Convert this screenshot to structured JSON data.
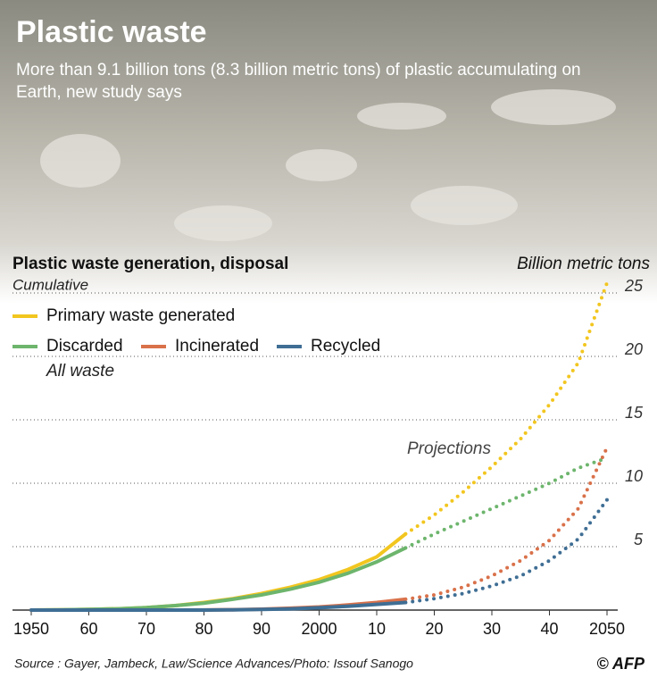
{
  "chart_data": {
    "type": "line",
    "title": "Plastic waste",
    "subtitle": "More than 9.1 billion tons (8.3 billion metric tons) of plastic accumulating on Earth, new study says",
    "chart_title": "Plastic waste generation, disposal",
    "chart_subtitle": "Cumulative",
    "y_label": "Billion metric tons",
    "annotations": [
      "All waste",
      "Projections"
    ],
    "source": "Source : Gayer, Jambeck, Law/Science Advances/Photo: Issouf Sanogo",
    "credit": "© AFP",
    "x": [
      1950,
      1955,
      1960,
      1965,
      1970,
      1975,
      1980,
      1985,
      1990,
      1995,
      2000,
      2005,
      2010,
      2015,
      2020,
      2025,
      2030,
      2035,
      2040,
      2045,
      2050
    ],
    "projection_from": 2015,
    "series": [
      {
        "name": "Primary waste generated",
        "color": "#f2c61f",
        "values": [
          0,
          0.02,
          0.05,
          0.1,
          0.2,
          0.35,
          0.6,
          0.9,
          1.3,
          1.8,
          2.4,
          3.2,
          4.2,
          6.0,
          7.5,
          9.3,
          11.3,
          13.5,
          16.2,
          19.5,
          25.8
        ]
      },
      {
        "name": "Discarded",
        "color": "#6db56d",
        "values": [
          0,
          0.02,
          0.05,
          0.1,
          0.2,
          0.35,
          0.55,
          0.85,
          1.2,
          1.65,
          2.2,
          2.9,
          3.8,
          4.9,
          6.0,
          7.0,
          8.0,
          9.0,
          10.0,
          11.2,
          12.0
        ]
      },
      {
        "name": "Incinerated",
        "color": "#d9714a",
        "values": [
          0,
          0,
          0,
          0,
          0,
          0,
          0.01,
          0.03,
          0.07,
          0.15,
          0.25,
          0.4,
          0.6,
          0.85,
          1.2,
          1.8,
          2.7,
          3.9,
          5.5,
          8.0,
          12.8
        ]
      },
      {
        "name": "Recycled",
        "color": "#3f6e94",
        "values": [
          0,
          0,
          0,
          0,
          0,
          0,
          0,
          0.02,
          0.05,
          0.1,
          0.18,
          0.3,
          0.45,
          0.6,
          0.9,
          1.3,
          1.9,
          2.7,
          3.9,
          5.6,
          8.7
        ]
      }
    ],
    "xlim": [
      1950,
      2050
    ],
    "xticks": [
      1950,
      {
        "value": 1960,
        "label": "60"
      },
      {
        "value": 1970,
        "label": "70"
      },
      {
        "value": 1980,
        "label": "80"
      },
      {
        "value": 1990,
        "label": "90"
      },
      2000,
      {
        "value": 2010,
        "label": "10"
      },
      {
        "value": 2020,
        "label": "20"
      },
      {
        "value": 2030,
        "label": "30"
      },
      {
        "value": 2040,
        "label": "40"
      },
      2050
    ],
    "ylim": [
      0,
      27
    ],
    "yticks": [
      5,
      10,
      15,
      20,
      25
    ],
    "grid": true
  }
}
